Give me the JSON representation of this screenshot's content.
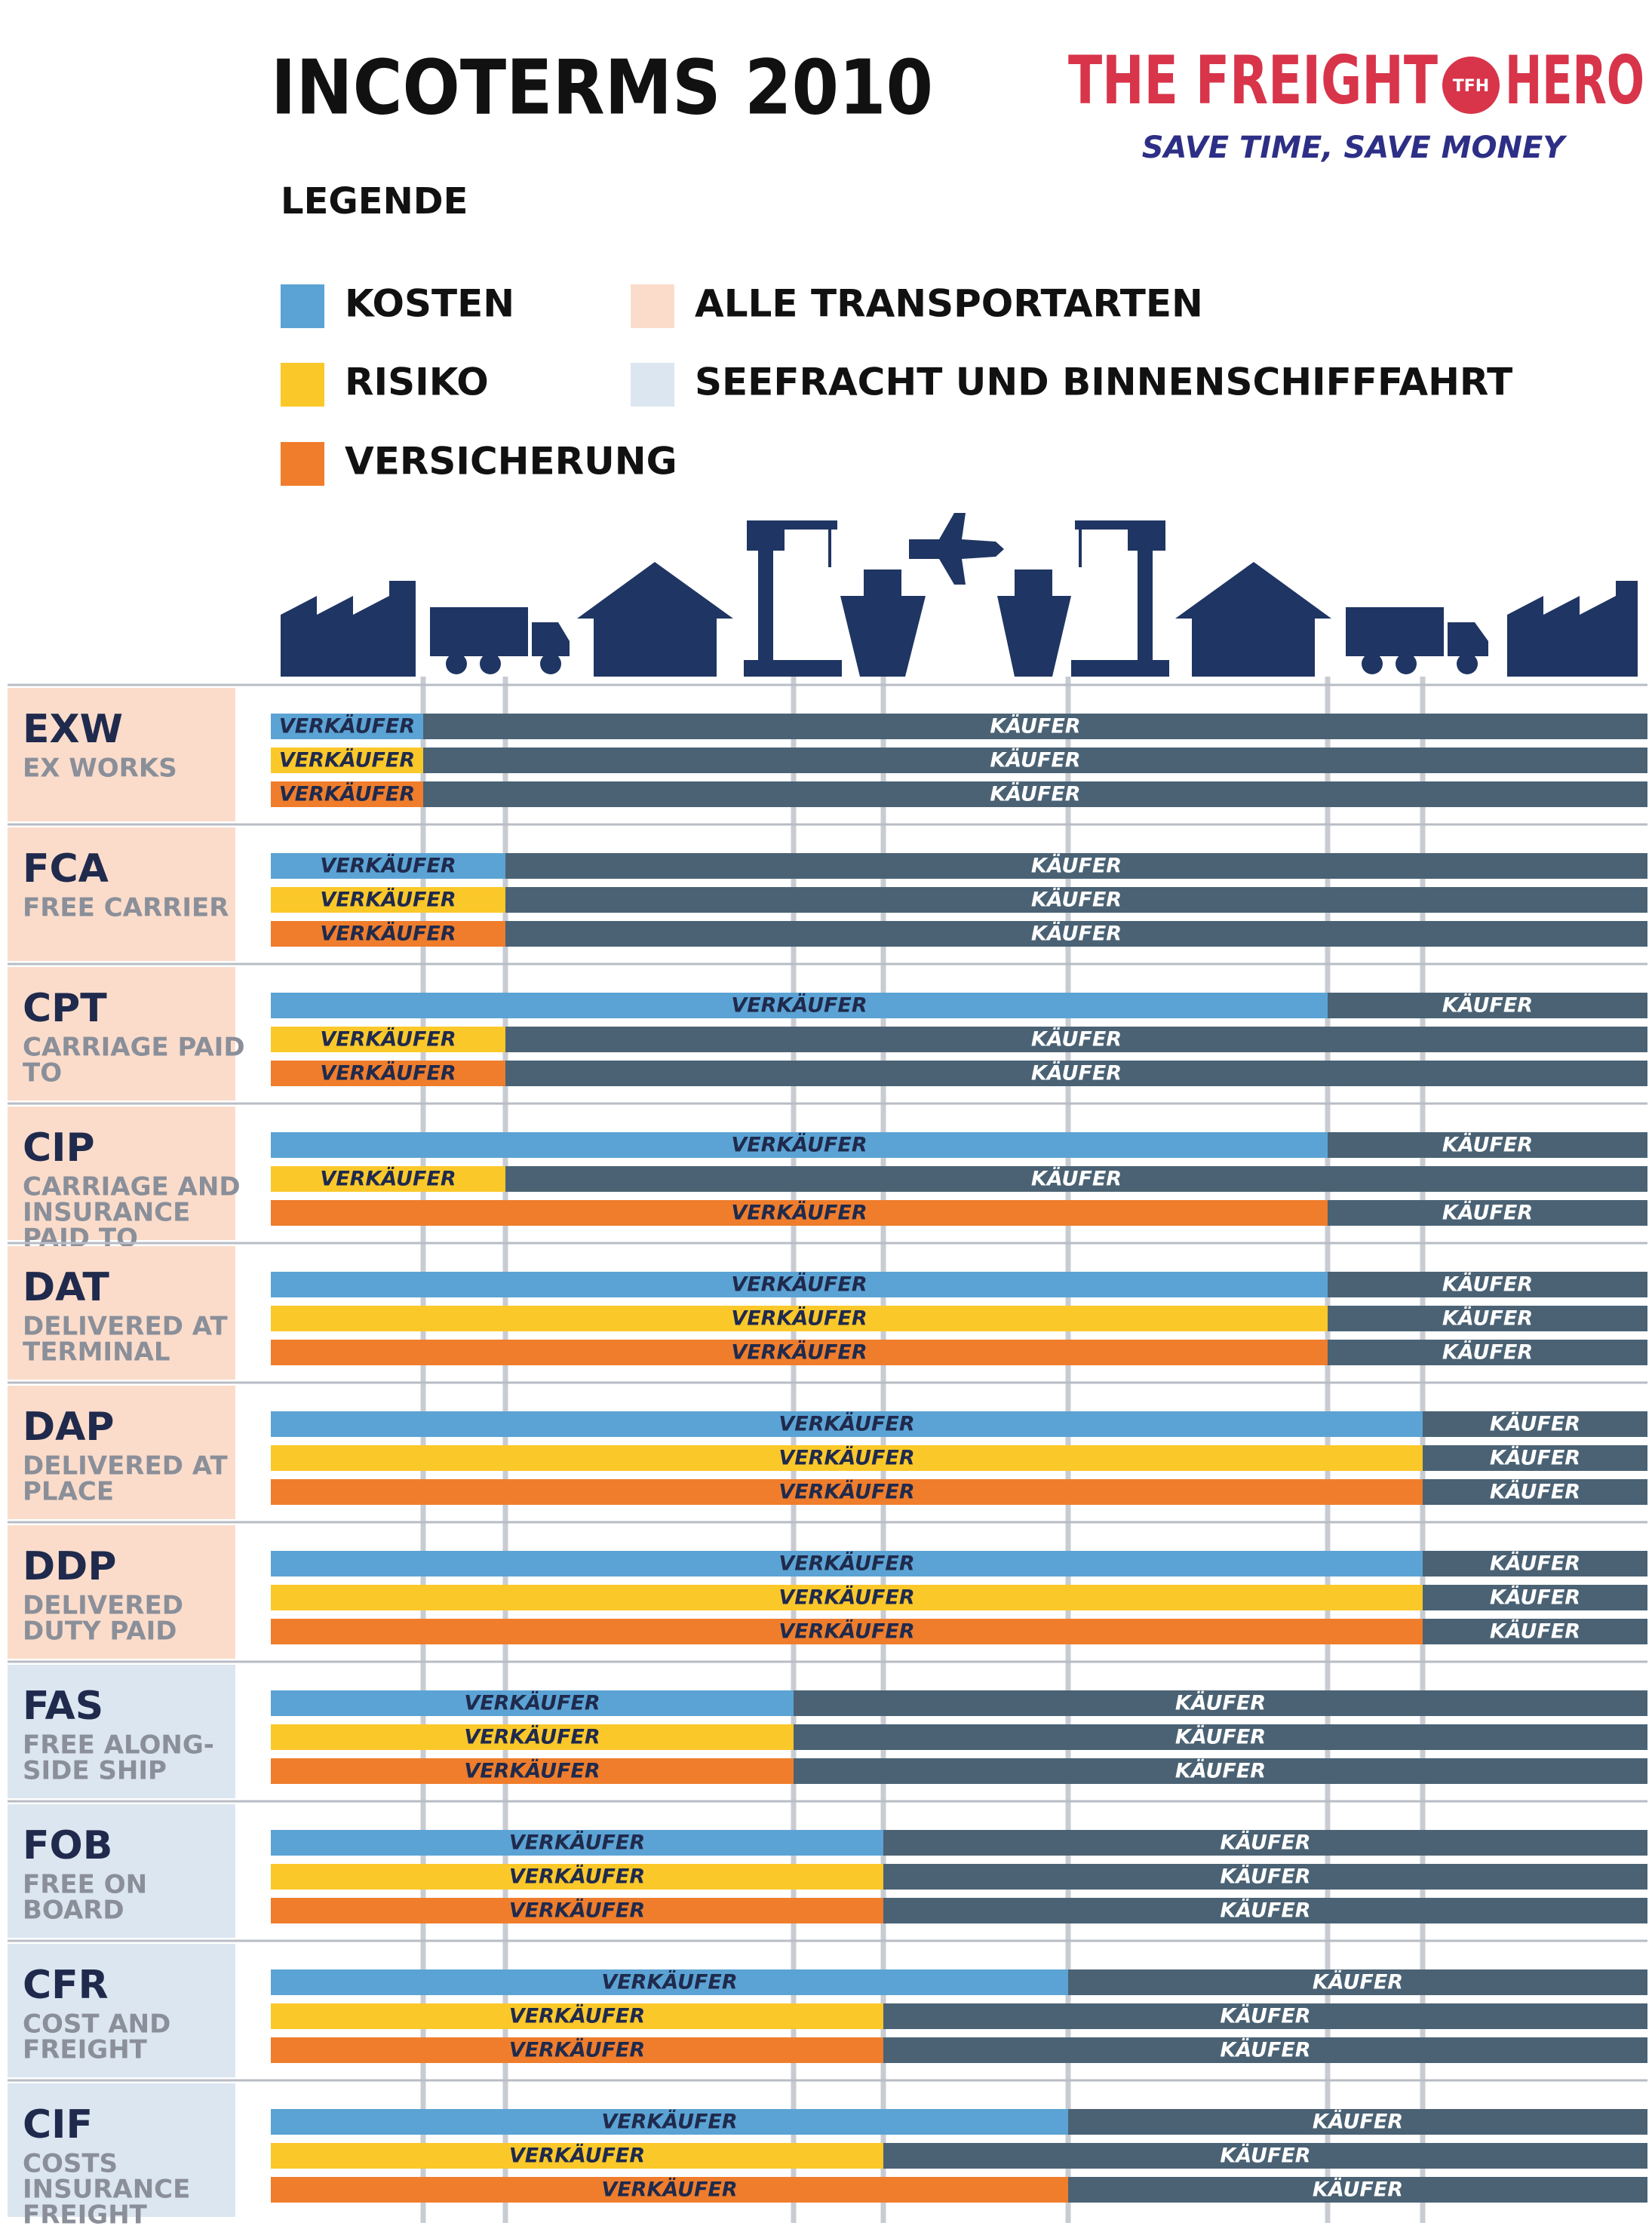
{
  "header": {
    "title": "INCOTERMS 2010",
    "brand_left": "THE FREIGHT",
    "brand_badge": "TFH",
    "brand_right": "HERO",
    "slogan": "SAVE TIME, SAVE MONEY"
  },
  "legend": {
    "title": "LEGENDE",
    "items": [
      {
        "label": "KOSTEN",
        "color": "#5ba3d4"
      },
      {
        "label": "RISIKO",
        "color": "#fbc82a"
      },
      {
        "label": "VERSICHERUNG",
        "color": "#ef7d2c"
      },
      {
        "label": "ALLE TRANSPORTARTEN",
        "color": "#fbdccb"
      },
      {
        "label": "SEEFRACHT UND BINNENSCHIFFFAHRT",
        "color": "#dbe6f1"
      }
    ]
  },
  "buyer_color": "#4a6274",
  "rows": [
    {
      "code": "EXW",
      "name": [
        "EX WORKS"
      ],
      "background": "#fbdccb",
      "bars": [
        {
          "seller": "VERKÄUFER",
          "buyer": "KÄUFER"
        },
        {
          "seller": "VERKÄUFER",
          "buyer": "KÄUFER"
        },
        {
          "seller": "VERKÄUFER",
          "buyer": "KÄUFER"
        }
      ]
    },
    {
      "code": "FCA",
      "name": [
        "FREE CARRIER"
      ],
      "background": "#fbdccb",
      "bars": [
        {
          "seller": "VERKÄUFER",
          "buyer": "KÄUFER"
        },
        {
          "seller": "VERKÄUFER",
          "buyer": "KÄUFER"
        },
        {
          "seller": "VERKÄUFER",
          "buyer": "KÄUFER"
        }
      ]
    },
    {
      "code": "CPT",
      "name": [
        "CARRIAGE PAID",
        "TO"
      ],
      "background": "#fbdccb",
      "bars": [
        {
          "seller": "VERKÄUFER",
          "buyer": "KÄUFER"
        },
        {
          "seller": "VERKÄUFER",
          "buyer": "KÄUFER"
        },
        {
          "seller": "VERKÄUFER",
          "buyer": "KÄUFER"
        }
      ]
    },
    {
      "code": "CIP",
      "name": [
        "CARRIAGE AND",
        "INSURANCE",
        "PAID TO"
      ],
      "background": "#fbdccb",
      "bars": [
        {
          "seller": "VERKÄUFER",
          "buyer": "KÄUFER"
        },
        {
          "seller": "VERKÄUFER",
          "buyer": "KÄUFER"
        },
        {
          "seller": "VERKÄUFER",
          "buyer": "KÄUFER"
        }
      ]
    },
    {
      "code": "DAT",
      "name": [
        "DELIVERED AT",
        "TERMINAL"
      ],
      "background": "#fbdccb",
      "bars": [
        {
          "seller": "VERKÄUFER",
          "buyer": "KÄUFER"
        },
        {
          "seller": "VERKÄUFER",
          "buyer": "KÄUFER"
        },
        {
          "seller": "VERKÄUFER",
          "buyer": "KÄUFER"
        }
      ]
    },
    {
      "code": "DAP",
      "name": [
        "DELIVERED AT",
        "PLACE"
      ],
      "background": "#fbdccb",
      "bars": [
        {
          "seller": "VERKÄUFER",
          "buyer": "KÄUFER"
        },
        {
          "seller": "VERKÄUFER",
          "buyer": "KÄUFER"
        },
        {
          "seller": "VERKÄUFER",
          "buyer": "KÄUFER"
        }
      ]
    },
    {
      "code": "DDP",
      "name": [
        "DELIVERED",
        "DUTY PAID"
      ],
      "background": "#fbdccb",
      "bars": [
        {
          "seller": "VERKÄUFER",
          "buyer": "KÄUFER"
        },
        {
          "seller": "VERKÄUFER",
          "buyer": "KÄUFER"
        },
        {
          "seller": "VERKÄUFER",
          "buyer": "KÄUFER"
        }
      ]
    },
    {
      "code": "FAS",
      "name": [
        "FREE ALONG-",
        "SIDE SHIP"
      ],
      "background": "#dbe6f1",
      "bars": [
        {
          "seller": "VERKÄUFER",
          "buyer": "KÄUFER"
        },
        {
          "seller": "VERKÄUFER",
          "buyer": "KÄUFER"
        },
        {
          "seller": "VERKÄUFER",
          "buyer": "KÄUFER"
        }
      ]
    },
    {
      "code": "FOB",
      "name": [
        "FREE ON",
        "BOARD"
      ],
      "background": "#dbe6f1",
      "bars": [
        {
          "seller": "VERKÄUFER",
          "buyer": "KÄUFER"
        },
        {
          "seller": "VERKÄUFER",
          "buyer": "KÄUFER"
        },
        {
          "seller": "VERKÄUFER",
          "buyer": "KÄUFER"
        }
      ]
    },
    {
      "code": "CFR",
      "name": [
        "COST AND",
        "FREIGHT"
      ],
      "background": "#dbe6f1",
      "bars": [
        {
          "seller": "VERKÄUFER",
          "buyer": "KÄUFER"
        },
        {
          "seller": "VERKÄUFER",
          "buyer": "KÄUFER"
        },
        {
          "seller": "VERKÄUFER",
          "buyer": "KÄUFER"
        }
      ]
    },
    {
      "code": "CIF",
      "name": [
        "COSTS",
        "INSURANCE",
        "FREIGHT"
      ],
      "background": "#dbe6f1",
      "bars": [
        {
          "seller": "VERKÄUFER",
          "buyer": "KÄUFER"
        },
        {
          "seller": "VERKÄUFER",
          "buyer": "KÄUFER"
        },
        {
          "seller": "VERKÄUFER",
          "buyer": "KÄUFER"
        }
      ]
    }
  ]
}
